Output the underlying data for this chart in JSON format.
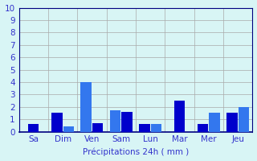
{
  "title": "",
  "xlabel": "Précipitations 24h ( mm )",
  "ylabel": "",
  "background_color": "#d8f5f5",
  "bar_color_dark": "#0000cc",
  "bar_color_light": "#3377ee",
  "grid_color": "#aaaaaa",
  "ylim": [
    0,
    10
  ],
  "yticks": [
    0,
    1,
    2,
    3,
    4,
    5,
    6,
    7,
    8,
    9,
    10
  ],
  "groups": [
    {
      "label": "Sa",
      "vals": [
        0.6
      ],
      "colors": [
        "dark"
      ]
    },
    {
      "label": "Dim",
      "vals": [
        1.5,
        0.4
      ],
      "colors": [
        "dark",
        "light"
      ]
    },
    {
      "label": "Ven",
      "vals": [
        4.0,
        0.7
      ],
      "colors": [
        "light",
        "dark"
      ]
    },
    {
      "label": "Sam",
      "vals": [
        1.7,
        1.6
      ],
      "colors": [
        "light",
        "dark"
      ]
    },
    {
      "label": "Lun",
      "vals": [
        0.6,
        0.6
      ],
      "colors": [
        "dark",
        "light"
      ]
    },
    {
      "label": "Mar",
      "vals": [
        2.5
      ],
      "colors": [
        "dark"
      ]
    },
    {
      "label": "Mer",
      "vals": [
        0.6,
        1.5
      ],
      "colors": [
        "dark",
        "light"
      ]
    },
    {
      "label": "Jeu",
      "vals": [
        1.5,
        2.0
      ],
      "colors": [
        "dark",
        "light"
      ]
    }
  ],
  "text_color": "#3333cc",
  "axis_color": "#000080",
  "font_size": 7.5,
  "bar_width": 0.4,
  "group_width": 1.0
}
